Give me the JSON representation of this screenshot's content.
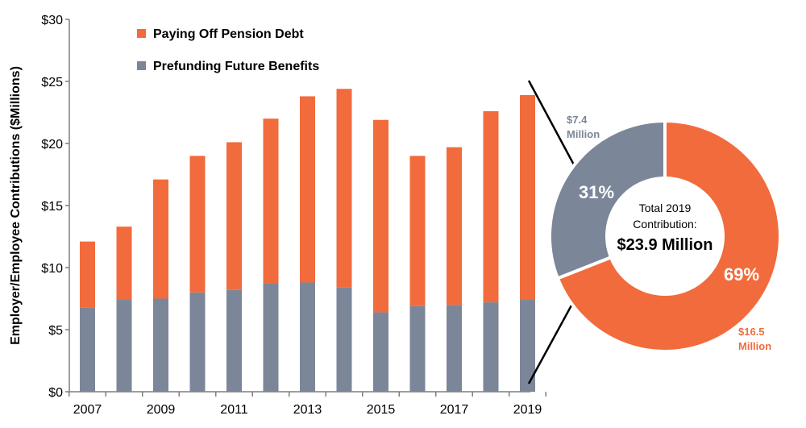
{
  "colors": {
    "debt": "#f26b3c",
    "prefund": "#7b8699"
  },
  "chart_data": [
    {
      "type": "bar",
      "stacked": true,
      "ylabel": "Employer/Employee Contributions ($Millions)",
      "ylim": [
        0,
        30
      ],
      "y_ticks": [
        "$0",
        "$5",
        "$10",
        "$15",
        "$20",
        "$25",
        "$30"
      ],
      "x_tick_labels": [
        "2007",
        "2009",
        "2011",
        "2013",
        "2015",
        "2017",
        "2019"
      ],
      "categories": [
        "2007",
        "2008",
        "2009",
        "2010",
        "2011",
        "2012",
        "2013",
        "2014",
        "2015",
        "2016",
        "2017",
        "2018",
        "2019"
      ],
      "series": [
        {
          "name": "Prefunding Future Benefits",
          "values": [
            6.8,
            7.4,
            7.5,
            8.0,
            8.2,
            8.7,
            8.8,
            8.4,
            6.4,
            6.9,
            7.0,
            7.2,
            7.4
          ]
        },
        {
          "name": "Paying Off Pension Debt",
          "values": [
            5.3,
            5.9,
            9.6,
            11.0,
            11.9,
            13.3,
            15.0,
            16.0,
            15.5,
            12.1,
            12.7,
            15.4,
            16.5
          ]
        }
      ],
      "legend": [
        "Paying Off Pension Debt",
        "Prefunding Future Benefits"
      ],
      "legend_position": "top-left",
      "grid": false
    },
    {
      "type": "pie",
      "donut": true,
      "slices": [
        {
          "label": "Prefunding Future Benefits",
          "value": 7.4,
          "percent": "31%",
          "amount_line1": "$7.4",
          "amount_line2": "Million"
        },
        {
          "label": "Paying Off Pension Debt",
          "value": 16.5,
          "percent": "69%",
          "amount_line1": "$16.5",
          "amount_line2": "Million"
        }
      ],
      "center_line1": "Total 2019",
      "center_line2": "Contribution:",
      "center_line3": "$23.9 Million"
    }
  ]
}
